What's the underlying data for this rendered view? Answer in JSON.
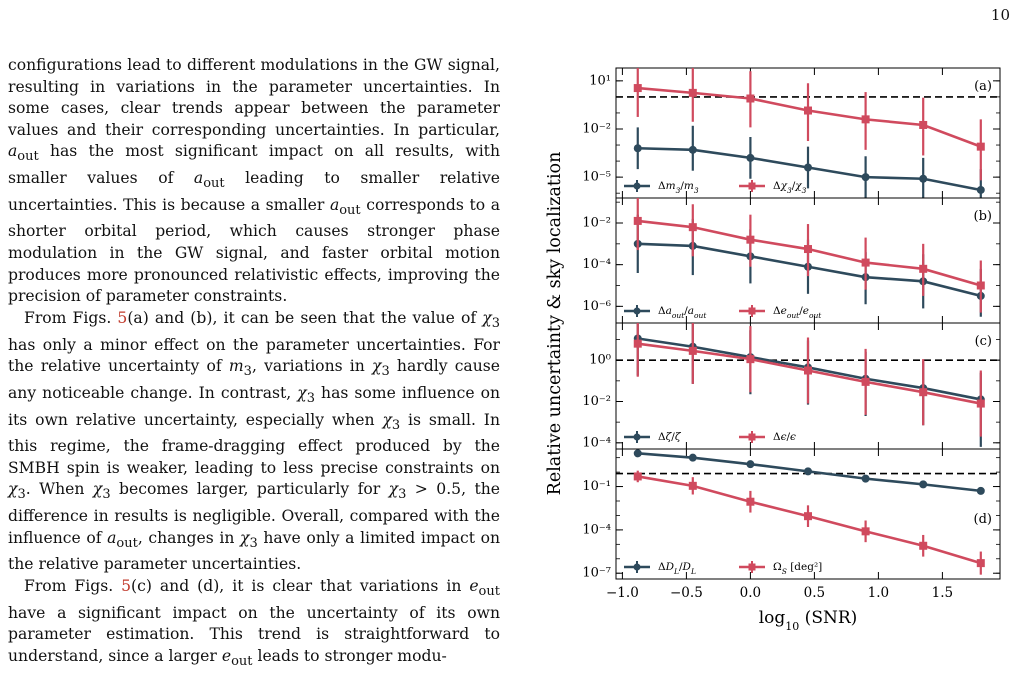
{
  "page_number": "10",
  "paragraphs": [
    "configurations lead to different modulations in the GW signal, resulting in variations in the parameter uncertainties. In some cases, clear trends appear between the parameter values and their corresponding uncertainties. In particular, a_out has the most significant impact on all results, with smaller values of a_out leading to smaller relative uncertainties. This is because a smaller a_out corresponds to a shorter orbital period, which causes stronger phase modulation in the GW signal, and faster orbital motion produces more pronounced relativistic effects, improving the precision of parameter constraints.",
    "From Figs. 5(a) and (b), it can be seen that the value of χ3 has only a minor effect on the parameter uncertainties. For the relative uncertainty of m3, variations in χ3 hardly cause any noticeable change. In contrast, χ3 has some influence on its own relative uncertainty, especially when χ3 is small. In this regime, the frame-dragging effect produced by the SMBH spin is weaker, leading to less precise constraints on χ3. When χ3 becomes larger, particularly for χ3 > 0.5, the difference in results is negligible. Overall, compared with the influence of a_out, changes in χ3 have only a limited impact on the relative parameter uncertainties.",
    "From Figs. 5(c) and (d), it is clear that variations in e_out have a significant impact on the uncertainty of its own parameter estimation. This trend is straightforward to understand, since a larger e_out leads to stronger modu-"
  ],
  "chart_data": {
    "type": "line",
    "ylabel": "Relative uncertainty & sky localization",
    "xlabel": "log10 (SNR)",
    "x": [
      -0.88,
      -0.45,
      0.0,
      0.45,
      0.9,
      1.35,
      1.8
    ],
    "xlim": [
      -1.05,
      1.95
    ],
    "xticks": [
      "−1.0",
      "−0.5",
      "0.0",
      "0.5",
      "1.0",
      "1.5"
    ],
    "colors": {
      "blue": "#2e4a5c",
      "red": "#d04a5e"
    },
    "panels": [
      {
        "label": "(a)",
        "ylim_log10": [
          -6.3,
          1.8
        ],
        "yticks": [
          {
            "exp": 1,
            "text": "10¹"
          },
          {
            "exp": -2,
            "text": "10⁻²"
          },
          {
            "exp": -5,
            "text": "10⁻⁵"
          }
        ],
        "dashed_log10": 0,
        "series": [
          {
            "name": "Δm3/m3",
            "color": "blue",
            "marker": "circle",
            "log10_values": [
              -3.2,
              -3.3,
              -3.8,
              -4.4,
              -5.0,
              -5.1,
              -5.8
            ],
            "err_low": [
              1.3,
              1.3,
              1.3,
              1.3,
              1.3,
              1.3,
              1.3
            ],
            "err_high": [
              1.3,
              1.5,
              1.3,
              1.3,
              1.3,
              1.3,
              1.3
            ]
          },
          {
            "name": "Δχ3/χ3",
            "color": "red",
            "marker": "square",
            "log10_values": [
              0.55,
              0.25,
              -0.1,
              -0.85,
              -1.4,
              -1.75,
              -3.1
            ],
            "err_low": [
              1.8,
              1.8,
              1.8,
              1.9,
              1.9,
              1.9,
              2.1
            ],
            "err_high": [
              1.7,
              1.8,
              1.7,
              1.7,
              1.7,
              1.7,
              1.7
            ]
          }
        ]
      },
      {
        "label": "(b)",
        "ylim_log10": [
          -6.8,
          -0.8
        ],
        "yticks": [
          {
            "exp": -2,
            "text": "10⁻²"
          },
          {
            "exp": -4,
            "text": "10⁻⁴"
          },
          {
            "exp": -6,
            "text": "10⁻⁶"
          }
        ],
        "dashed_log10": null,
        "series": [
          {
            "name": "Δa_out/a_out",
            "color": "blue",
            "marker": "circle",
            "log10_values": [
              -3.0,
              -3.1,
              -3.6,
              -4.1,
              -4.6,
              -4.8,
              -5.5
            ],
            "err_low": [
              1.4,
              1.4,
              1.3,
              1.3,
              1.3,
              1.3,
              1.0
            ],
            "err_high": [
              1.4,
              1.3,
              1.3,
              1.3,
              1.2,
              1.3,
              1.3
            ]
          },
          {
            "name": "Δe_out/e_out",
            "color": "red",
            "marker": "square",
            "log10_values": [
              -1.9,
              -2.2,
              -2.8,
              -3.25,
              -3.9,
              -4.2,
              -5.0
            ],
            "err_low": [
              1.4,
              1.4,
              1.3,
              1.3,
              1.3,
              1.3,
              1.3
            ],
            "err_high": [
              1.2,
              1.1,
              1.2,
              1.2,
              1.2,
              1.2,
              1.2
            ]
          }
        ]
      },
      {
        "label": "(c)",
        "ylim_log10": [
          -4.3,
          1.8
        ],
        "yticks": [
          {
            "exp": 0,
            "text": "10⁰"
          },
          {
            "exp": -2,
            "text": "10⁻²"
          },
          {
            "exp": -4,
            "text": "10⁻⁴"
          }
        ],
        "dashed_log10": 0,
        "series": [
          {
            "name": "Δζ/ζ",
            "color": "blue",
            "marker": "circle",
            "log10_values": [
              1.05,
              0.65,
              0.15,
              -0.35,
              -0.9,
              -1.35,
              -1.9
            ],
            "err_low": [
              1.8,
              1.8,
              1.8,
              1.8,
              1.8,
              1.8,
              2.3
            ],
            "err_high": [
              1.3,
              1.3,
              1.3,
              1.3,
              1.3,
              1.3,
              1.3
            ]
          },
          {
            "name": "Δε/ε",
            "color": "red",
            "marker": "square",
            "log10_values": [
              0.8,
              0.45,
              0.05,
              -0.5,
              -1.05,
              -1.55,
              -2.1
            ],
            "err_low": [
              1.6,
              1.6,
              1.6,
              1.6,
              1.6,
              1.6,
              1.6
            ],
            "err_high": [
              1.6,
              1.6,
              1.6,
              1.6,
              1.6,
              1.6,
              1.6
            ]
          }
        ]
      },
      {
        "label": "(d)",
        "ylim_log10": [
          -7.4,
          1.6
        ],
        "yticks": [
          {
            "exp": -1,
            "text": "10⁻¹"
          },
          {
            "exp": -4,
            "text": "10⁻⁴"
          },
          {
            "exp": -7,
            "text": "10⁻⁷"
          }
        ],
        "dashed_log10": -0.1,
        "series": [
          {
            "name": "ΔD_L/D_L",
            "color": "blue",
            "marker": "circle",
            "log10_values": [
              1.3,
              1.0,
              0.55,
              0.05,
              -0.45,
              -0.85,
              -1.3
            ],
            "err_low": [
              0,
              0,
              0,
              0,
              0,
              0,
              0
            ],
            "err_high": [
              0,
              0,
              0,
              0,
              0,
              0,
              0
            ]
          },
          {
            "name": "Ω_S [deg²]",
            "color": "red",
            "marker": "square",
            "log10_values": [
              -0.3,
              -0.95,
              -2.05,
              -3.05,
              -4.1,
              -5.1,
              -6.3
            ],
            "err_low": [
              0.4,
              0.6,
              0.75,
              0.75,
              0.75,
              0.75,
              0.8
            ],
            "err_high": [
              0.4,
              0.6,
              0.75,
              0.75,
              0.75,
              0.75,
              0.8
            ]
          }
        ]
      }
    ]
  }
}
